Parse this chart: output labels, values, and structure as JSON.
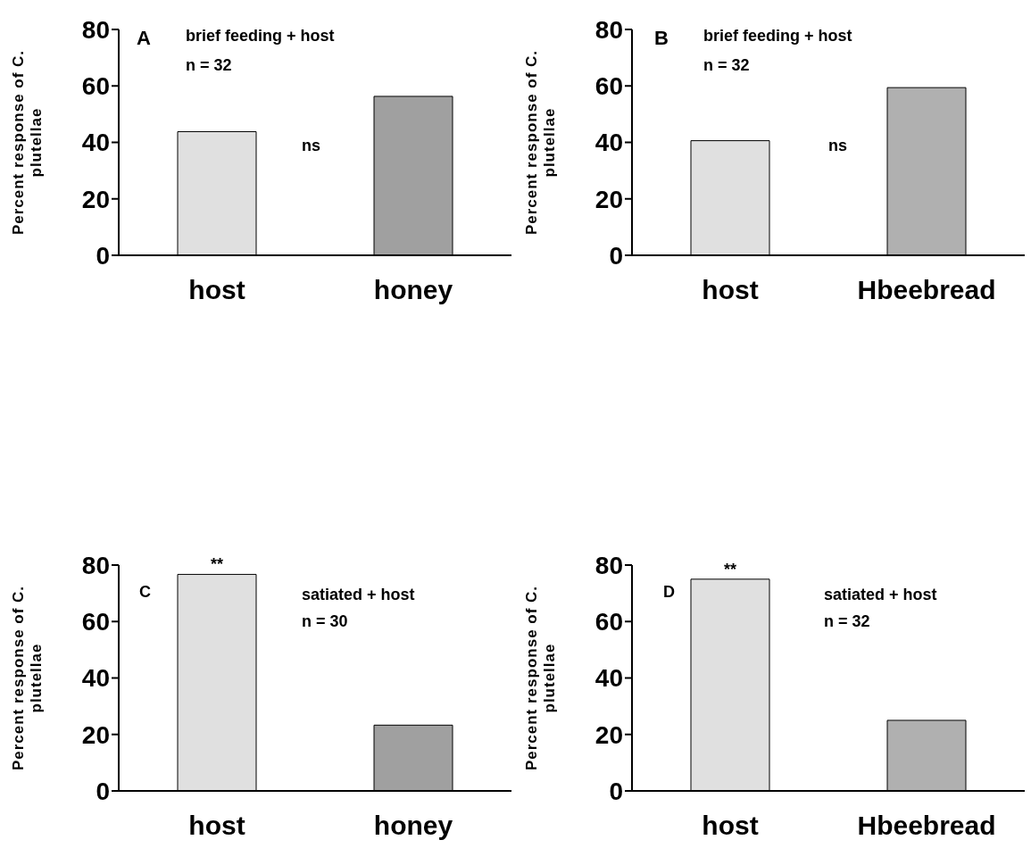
{
  "chart_data": [
    {
      "type": "bar",
      "categories": [
        "host",
        "honey"
      ],
      "values": [
        43.8,
        56.3
      ],
      "colors": [
        "#e0e0e0",
        "#a0a0a0"
      ],
      "ylim": [
        0,
        80
      ],
      "yticks": [
        0,
        20,
        40,
        60,
        80
      ],
      "ylabel": "Percent response of C. plutellae",
      "annotations": [
        "A",
        "brief feeding + host",
        "n = 32",
        "ns"
      ]
    },
    {
      "type": "bar",
      "categories": [
        "host",
        "Hbeebread"
      ],
      "values": [
        40.6,
        59.4
      ],
      "colors": [
        "#e0e0e0",
        "#b0b0b0"
      ],
      "ylim": [
        0,
        80
      ],
      "yticks": [
        0,
        20,
        40,
        60,
        80
      ],
      "ylabel": "Percent response of C. plutellae",
      "annotations": [
        "B",
        "brief feeding + host",
        "n = 32",
        "ns"
      ]
    },
    {
      "type": "bar",
      "categories": [
        "host",
        "honey"
      ],
      "values": [
        76.7,
        23.3
      ],
      "colors": [
        "#e0e0e0",
        "#a0a0a0"
      ],
      "ylim": [
        0,
        80
      ],
      "yticks": [
        0,
        20,
        40,
        60,
        80
      ],
      "ylabel": "Percent response of C. plutellae",
      "annotations": [
        "C",
        "satiated + host",
        "n = 30",
        {
          "text": "**",
          "x": "host",
          "y": 76.7
        }
      ]
    },
    {
      "type": "bar",
      "categories": [
        "host",
        "Hbeebread"
      ],
      "values": [
        75,
        25
      ],
      "colors": [
        "#e0e0e0",
        "#b0b0b0"
      ],
      "ylim": [
        0,
        80
      ],
      "yticks": [
        0,
        20,
        40,
        60,
        80
      ],
      "ylabel": "Percent response of C. plutellae",
      "annotations": [
        "D",
        "satiated + host",
        "n = 32",
        {
          "text": "**",
          "x": "host",
          "y": 75
        }
      ]
    }
  ]
}
